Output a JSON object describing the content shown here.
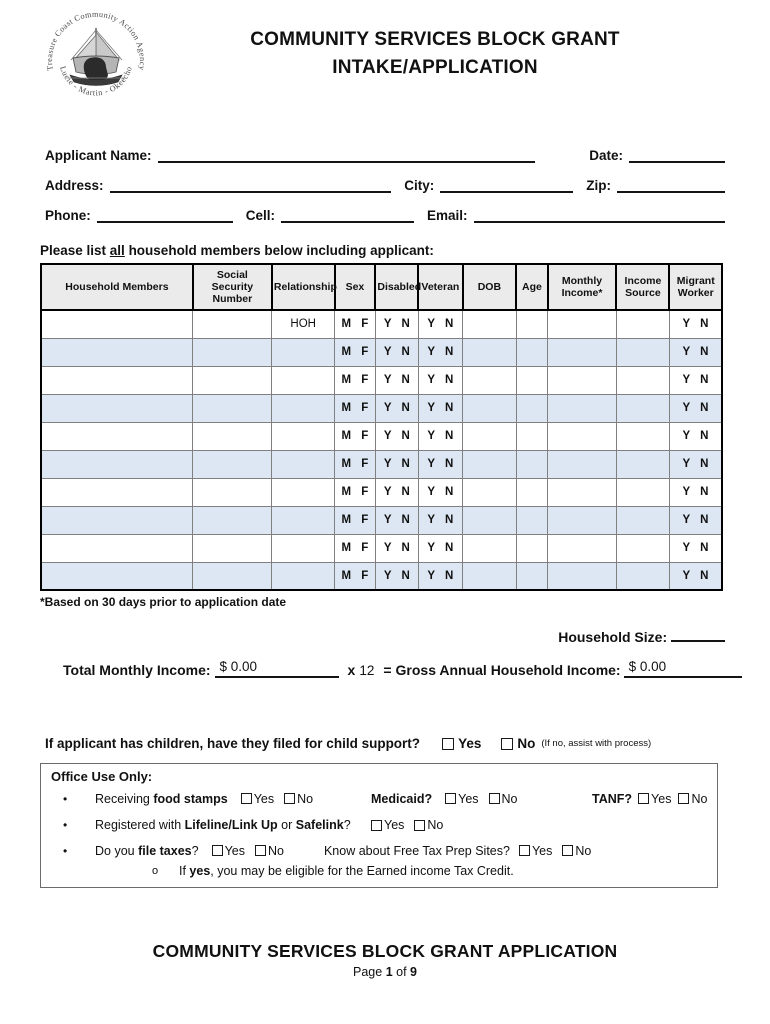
{
  "logo": {
    "arc_top": "Treasure Coast Community Action Agency",
    "arc_bottom": "St. Lucie - Martin - Okeechobee",
    "ship_icon": "sailing-ship"
  },
  "header": {
    "title_line1": "COMMUNITY SERVICES BLOCK GRANT",
    "title_line2": "INTAKE/APPLICATION"
  },
  "fields": {
    "applicant_name": "Applicant Name:",
    "date": "Date:",
    "address": "Address:",
    "city": "City:",
    "zip": "Zip:",
    "phone": "Phone:",
    "cell": "Cell:",
    "email": "Email:"
  },
  "table": {
    "caption_pre": "Please list ",
    "caption_underline": "all",
    "caption_post": " household members below including applicant:",
    "columns": [
      "Household Members",
      "Social Security Number",
      "Relationship",
      "Sex",
      "Disabled",
      "Veteran",
      "DOB",
      "Age",
      "Monthly Income*",
      "Income Source",
      "Migrant Worker"
    ],
    "rows": [
      {
        "relationship": "HOH",
        "sex": "M F",
        "disabled": "Y N",
        "veteran": "Y N",
        "migrant": "Y N"
      },
      {
        "relationship": "",
        "sex": "M F",
        "disabled": "Y N",
        "veteran": "Y N",
        "migrant": "Y N"
      },
      {
        "relationship": "",
        "sex": "M F",
        "disabled": "Y N",
        "veteran": "Y N",
        "migrant": "Y N"
      },
      {
        "relationship": "",
        "sex": "M F",
        "disabled": "Y N",
        "veteran": "Y N",
        "migrant": "Y N"
      },
      {
        "relationship": "",
        "sex": "M F",
        "disabled": "Y N",
        "veteran": "Y N",
        "migrant": "Y N"
      },
      {
        "relationship": "",
        "sex": "M F",
        "disabled": "Y N",
        "veteran": "Y N",
        "migrant": "Y N"
      },
      {
        "relationship": "",
        "sex": "M F",
        "disabled": "Y N",
        "veteran": "Y N",
        "migrant": "Y N"
      },
      {
        "relationship": "",
        "sex": "M F",
        "disabled": "Y N",
        "veteran": "Y N",
        "migrant": "Y N"
      },
      {
        "relationship": "",
        "sex": "M F",
        "disabled": "Y N",
        "veteran": "Y N",
        "migrant": "Y N"
      },
      {
        "relationship": "",
        "sex": "M F",
        "disabled": "Y N",
        "veteran": "Y N",
        "migrant": "Y N"
      }
    ],
    "footnote": "*Based on 30 days prior to application date"
  },
  "summary": {
    "household_size_label": "Household Size:",
    "total_monthly_label": "Total Monthly Income:",
    "total_monthly_value": "$ 0.00",
    "times_label": "x",
    "multiplier": "12",
    "equals_label": "=",
    "gross_annual_label": "Gross Annual Household Income:",
    "gross_annual_value": "$ 0.00"
  },
  "child_support": {
    "question": "If applicant has children, have they filed for child support?",
    "yes": "Yes",
    "no": "No",
    "note": "(If no, assist with process)"
  },
  "office": {
    "title": "Office Use Only:",
    "row1": {
      "pre": "Receiving ",
      "bold": "food stamps",
      "yes": "Yes",
      "no": "No",
      "medicaid": "Medicaid?",
      "medicaid_yes": "Yes",
      "medicaid_no": "No",
      "tanf": "TANF?",
      "tanf_yes": "Yes",
      "tanf_no": "No"
    },
    "row2": {
      "pre": "Registered with ",
      "bold1": "Lifeline/Link Up",
      "mid": " or ",
      "bold2": "Safelink",
      "post": "?",
      "yes": "Yes",
      "no": "No"
    },
    "row3": {
      "pre": "Do you ",
      "bold": "file taxes",
      "post": "?",
      "yes": "Yes",
      "no": "No",
      "q2": "Know about Free Tax Prep Sites?",
      "yes2": "Yes",
      "no2": "No"
    },
    "row4": {
      "pre": "If ",
      "bold": "yes",
      "post": ", you may be eligible for the Earned income Tax Credit."
    }
  },
  "footer": {
    "title": "COMMUNITY SERVICES BLOCK GRANT APPLICATION",
    "page_pre": "Page ",
    "page_num": "1",
    "page_mid": " of ",
    "page_total": "9"
  },
  "colors": {
    "row_alt": "#dde7f4",
    "table_header_bg": "#ebebeb"
  }
}
